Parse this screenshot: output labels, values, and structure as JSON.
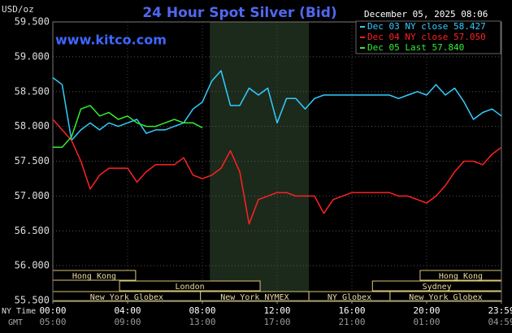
{
  "chart_data": {
    "type": "line",
    "title": "24 Hour Spot Silver (Bid)",
    "y_label": "USD/oz",
    "watermark": "www.kitco.com",
    "timestamp": "December 05, 2025 08:06",
    "x_label": "NY Time",
    "x2_label": "GMT",
    "grid": true,
    "xlim": [
      0,
      24
    ],
    "ylim": [
      55.5,
      59.5
    ],
    "yticks": [
      {
        "value": 55.5,
        "label": "55.500"
      },
      {
        "value": 56,
        "label": "56.000"
      },
      {
        "value": 56.5,
        "label": "56.500"
      },
      {
        "value": 57,
        "label": "57.000"
      },
      {
        "value": 57.5,
        "label": "57.500"
      },
      {
        "value": 58,
        "label": "58.000"
      },
      {
        "value": 58.5,
        "label": "58.500"
      },
      {
        "value": 59,
        "label": "59.000"
      },
      {
        "value": 59.5,
        "label": "59.500"
      }
    ],
    "xticks": [
      {
        "value": 0,
        "label": "00:00"
      },
      {
        "value": 4,
        "label": "04:00"
      },
      {
        "value": 8,
        "label": "08:00"
      },
      {
        "value": 12,
        "label": "12:00"
      },
      {
        "value": 16,
        "label": "16:00"
      },
      {
        "value": 20,
        "label": "20:00"
      },
      {
        "value": 24,
        "label": "23:59"
      }
    ],
    "x2ticks": [
      {
        "value": 0,
        "label": "05:00"
      },
      {
        "value": 4,
        "label": "09:00"
      },
      {
        "value": 8,
        "label": "13:00"
      },
      {
        "value": 12,
        "label": "17:00"
      },
      {
        "value": 16,
        "label": "21:00"
      },
      {
        "value": 20,
        "label": "01:00"
      },
      {
        "value": 24,
        "label": "04:59"
      }
    ],
    "highlight": [
      8.4,
      13.7
    ],
    "sessions": [
      [
        {
          "label": "Hong Kong",
          "start": 0,
          "end": 4.43
        },
        {
          "label": "Hong Kong",
          "start": 19.65,
          "end": 24
        }
      ],
      [
        {
          "label": "London",
          "start": 3.57,
          "end": 11.09
        },
        {
          "label": "Sydney",
          "start": 17.1,
          "end": 24
        }
      ],
      [
        {
          "label": "New York Globex",
          "start": 0,
          "end": 7.9
        },
        {
          "label": "New York NYMEX",
          "start": 7.9,
          "end": 13.7
        },
        {
          "label": "NY Globex",
          "start": 13.7,
          "end": 18.04
        },
        {
          "label": "New York Globex",
          "start": 18.04,
          "end": 24
        }
      ]
    ],
    "x": [
      0,
      0.5,
      1,
      1.5,
      2,
      2.5,
      3,
      3.5,
      4,
      4.5,
      5,
      5.5,
      6,
      6.5,
      7,
      7.5,
      8,
      8.5,
      9,
      9.5,
      10,
      10.5,
      11,
      11.5,
      12,
      12.5,
      13,
      13.5,
      14,
      14.5,
      15,
      15.5,
      16,
      16.5,
      17,
      17.5,
      18,
      18.5,
      19,
      19.5,
      20,
      20.5,
      21,
      21.5,
      22,
      22.5,
      23,
      23.5,
      24
    ],
    "series": [
      {
        "name": "Dec 03 NY close 58.427",
        "color": "#33ccff",
        "values": [
          58.7,
          58.6,
          57.8,
          57.95,
          58.05,
          57.95,
          58.05,
          58.0,
          58.05,
          58.1,
          57.9,
          57.95,
          57.95,
          58.0,
          58.05,
          58.25,
          58.35,
          58.65,
          58.8,
          58.3,
          58.3,
          58.55,
          58.45,
          58.55,
          58.05,
          58.4,
          58.4,
          58.25,
          58.4,
          58.45,
          58.45,
          58.45,
          58.45,
          58.45,
          58.45,
          58.45,
          58.45,
          58.4,
          58.45,
          58.5,
          58.45,
          58.6,
          58.45,
          58.55,
          58.35,
          58.1,
          58.2,
          58.25,
          58.15
        ]
      },
      {
        "name": "Dec 04 NY close 57.050",
        "color": "#ff2222",
        "values": [
          58.1,
          57.95,
          57.8,
          57.5,
          57.1,
          57.3,
          57.4,
          57.4,
          57.4,
          57.2,
          57.35,
          57.45,
          57.45,
          57.45,
          57.55,
          57.3,
          57.25,
          57.3,
          57.4,
          57.65,
          57.35,
          56.6,
          56.95,
          57.0,
          57.05,
          57.05,
          57.0,
          57.0,
          57.0,
          56.75,
          56.95,
          57.0,
          57.05,
          57.05,
          57.05,
          57.05,
          57.05,
          57.0,
          57.0,
          56.95,
          56.9,
          57.0,
          57.15,
          57.35,
          57.5,
          57.5,
          57.45,
          57.6,
          57.7
        ]
      },
      {
        "name": "Dec 05 Last 57.840",
        "color": "#33ee33",
        "values": [
          57.7,
          57.7,
          57.85,
          58.25,
          58.3,
          58.15,
          58.2,
          58.1,
          58.15,
          58.05,
          58.0,
          58.0,
          58.05,
          58.1,
          58.05,
          58.05,
          57.98,
          null,
          null,
          null,
          null,
          null,
          null,
          null,
          null,
          null,
          null,
          null,
          null,
          null,
          null,
          null,
          null,
          null,
          null,
          null,
          null,
          null,
          null,
          null,
          null,
          null,
          null,
          null,
          null,
          null,
          null,
          null,
          null
        ]
      }
    ]
  }
}
